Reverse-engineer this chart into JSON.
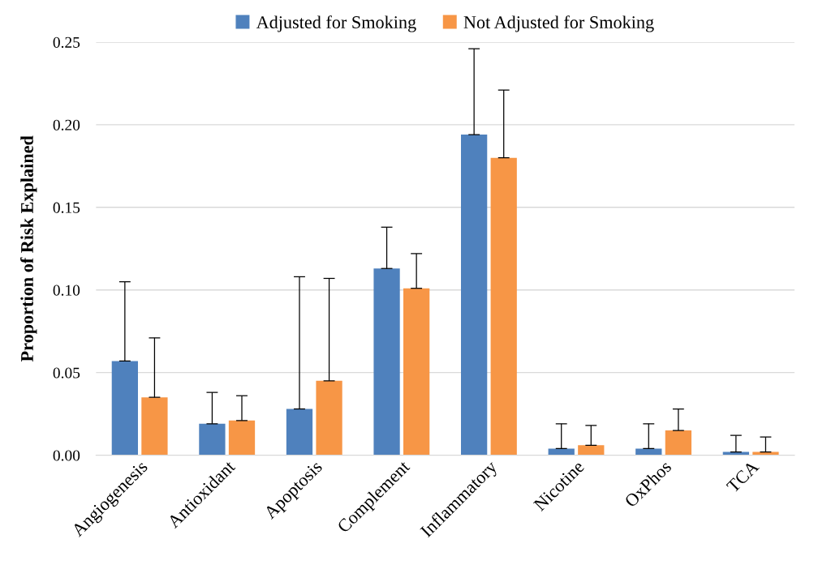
{
  "chart_data": {
    "type": "bar",
    "ylabel": "Proportion of Risk Explained",
    "categories": [
      "Angiogenesis",
      "Antioxidant",
      "Apoptosis",
      "Complement",
      "Inflammatory",
      "Nicotine",
      "OxPhos",
      "TCA"
    ],
    "series": [
      {
        "name": "Adjusted for Smoking",
        "color": "#4f81bd",
        "values": [
          0.057,
          0.019,
          0.028,
          0.113,
          0.194,
          0.004,
          0.004,
          0.002
        ],
        "errors": [
          [
            0.057,
            0.105
          ],
          [
            0.019,
            0.038
          ],
          [
            0.028,
            0.108
          ],
          [
            0.113,
            0.138
          ],
          [
            0.194,
            0.246
          ],
          [
            0.004,
            0.019
          ],
          [
            0.004,
            0.019
          ],
          [
            0.002,
            0.012
          ]
        ]
      },
      {
        "name": "Not Adjusted for Smoking",
        "color": "#f79646",
        "values": [
          0.035,
          0.021,
          0.045,
          0.101,
          0.18,
          0.006,
          0.015,
          0.002
        ],
        "errors": [
          [
            0.035,
            0.071
          ],
          [
            0.021,
            0.036
          ],
          [
            0.045,
            0.107
          ],
          [
            0.101,
            0.122
          ],
          [
            0.18,
            0.221
          ],
          [
            0.006,
            0.018
          ],
          [
            0.015,
            0.028
          ],
          [
            0.002,
            0.011
          ]
        ]
      }
    ],
    "ylim": [
      0,
      0.25
    ],
    "yticks": [
      {
        "value": 0,
        "label": "0.00"
      },
      {
        "value": 0.05,
        "label": "0.05"
      },
      {
        "value": 0.1,
        "label": "0.10"
      },
      {
        "value": 0.15,
        "label": "0.15"
      },
      {
        "value": 0.2,
        "label": "0.20"
      },
      {
        "value": 0.25,
        "label": "0.25"
      }
    ],
    "grid": "y",
    "legend": "top"
  }
}
